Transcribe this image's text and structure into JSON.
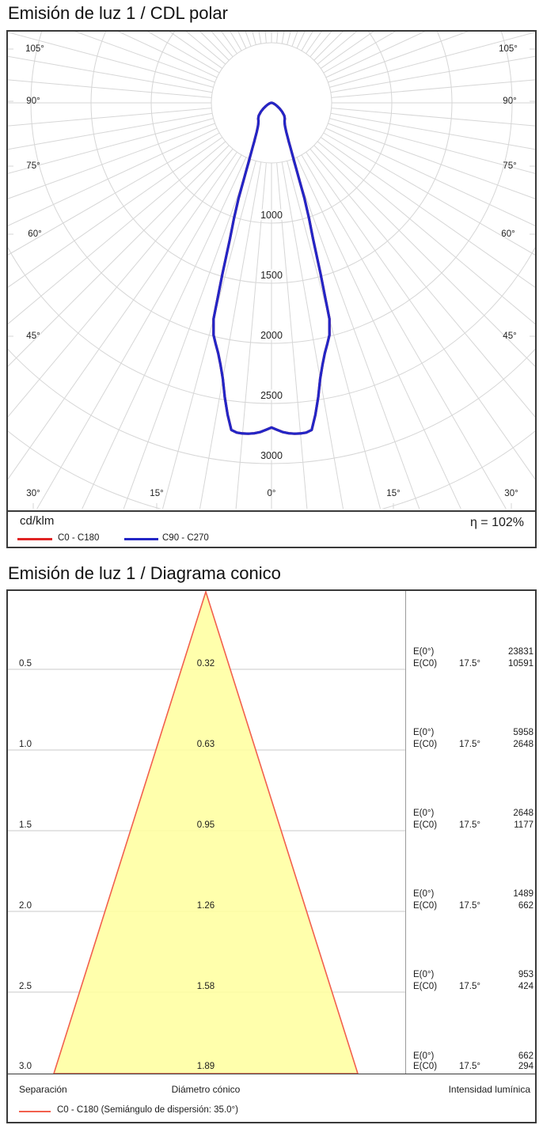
{
  "polar_panel": {
    "title": "Emisión de luz 1 / CDL polar",
    "unit_label": "cd/klm",
    "efficiency": "η = 102%",
    "legend": [
      {
        "label": "C0 - C180",
        "color": "#e02424"
      },
      {
        "label": "C90 - C270",
        "color": "#2326c6"
      }
    ],
    "grid_color": "#d6d6d6",
    "border_color": "#3a3a3a"
  },
  "cone_panel": {
    "title": "Emisión de luz 1 / Diagrama conico",
    "labels": {
      "e0": "E(0°)",
      "ec0": "E(C0)",
      "angle": "17.5°"
    },
    "rows": [
      {
        "sep": "0.5",
        "diam": "0.32",
        "e0": "23831",
        "ec0": "10591"
      },
      {
        "sep": "1.0",
        "diam": "0.63",
        "e0": "5958",
        "ec0": "2648"
      },
      {
        "sep": "1.5",
        "diam": "0.95",
        "e0": "2648",
        "ec0": "1177"
      },
      {
        "sep": "2.0",
        "diam": "1.26",
        "e0": "1489",
        "ec0": "662"
      },
      {
        "sep": "2.5",
        "diam": "1.58",
        "e0": "953",
        "ec0": "424"
      },
      {
        "sep": "3.0",
        "diam": "1.89",
        "e0": "662",
        "ec0": "294"
      }
    ],
    "footer": {
      "separation": "Separación",
      "diameter": "Diámetro cónico",
      "intensity": "Intensidad lumínica",
      "legend": "C0 - C180 (Semiángulo de dispersión: 35.0°)",
      "legend_color": "#f2604d"
    },
    "cone_fill": "#ffff9e"
  },
  "chart_data": [
    {
      "type": "polar",
      "title": "Emisión de luz 1 / CDL polar",
      "unit": "cd/klm",
      "efficiency_percent": 102,
      "radial_ticks": [
        1000,
        1500,
        2000,
        2500,
        3000
      ],
      "radial_step": 500,
      "max_radius_shown": 3500,
      "spoke_step_deg": 5,
      "angle_ticks": [
        "105°",
        "90°",
        "75°",
        "60°",
        "45°",
        "30°",
        "15°",
        "0°",
        "15°",
        "30°",
        "45°",
        "60°",
        "75°",
        "90°",
        "105°"
      ],
      "legend_position": "bottom",
      "series": [
        {
          "name": "C0 - C180",
          "color": "#e02424",
          "gamma": [
            0,
            1,
            2,
            3,
            4,
            5,
            6,
            7,
            8,
            9,
            10,
            11,
            12,
            13,
            14,
            15,
            16,
            17,
            18,
            19,
            20,
            21,
            22,
            23,
            24,
            25,
            27,
            30,
            33,
            36,
            40,
            45,
            50,
            55,
            60,
            65,
            70,
            75,
            80,
            85,
            90
          ],
          "values": [
            2700,
            2720,
            2740,
            2752,
            2758,
            2760,
            2757,
            2740,
            2620,
            2480,
            2330,
            2220,
            2130,
            2060,
            1990,
            1860,
            1480,
            1180,
            1010,
            840,
            660,
            540,
            460,
            400,
            355,
            320,
            270,
            225,
            200,
            185,
            172,
            150,
            115,
            82,
            55,
            35,
            22,
            14,
            8,
            3,
            0
          ]
        },
        {
          "name": "C90 - C270",
          "color": "#2326c6",
          "gamma": [
            0,
            1,
            2,
            3,
            4,
            5,
            6,
            7,
            8,
            9,
            10,
            11,
            12,
            13,
            14,
            15,
            16,
            17,
            18,
            19,
            20,
            21,
            22,
            23,
            24,
            25,
            27,
            30,
            33,
            36,
            40,
            45,
            50,
            55,
            60,
            65,
            70,
            75,
            80,
            85,
            90
          ],
          "values": [
            2700,
            2720,
            2740,
            2752,
            2758,
            2760,
            2757,
            2740,
            2620,
            2480,
            2330,
            2220,
            2130,
            2060,
            1990,
            1860,
            1480,
            1180,
            1010,
            840,
            660,
            540,
            460,
            400,
            355,
            320,
            270,
            225,
            200,
            185,
            172,
            150,
            115,
            82,
            55,
            35,
            22,
            14,
            8,
            3,
            0
          ]
        }
      ]
    },
    {
      "type": "cone-diagram",
      "title": "Emisión de luz 1 / Diagrama conico",
      "beam_half_angle_deg": 17.5,
      "distances_m": [
        0.5,
        1.0,
        1.5,
        2.0,
        2.5,
        3.0
      ],
      "cone_diameters_m": [
        0.32,
        0.63,
        0.95,
        1.26,
        1.58,
        1.89
      ],
      "E0_lux": [
        23831,
        5958,
        2648,
        1489,
        953,
        662
      ],
      "EC0_lux": [
        10591,
        2648,
        1177,
        662,
        424,
        294
      ],
      "legend": "C0 - C180 (Semiángulo de dispersión: 35.0°)"
    }
  ]
}
